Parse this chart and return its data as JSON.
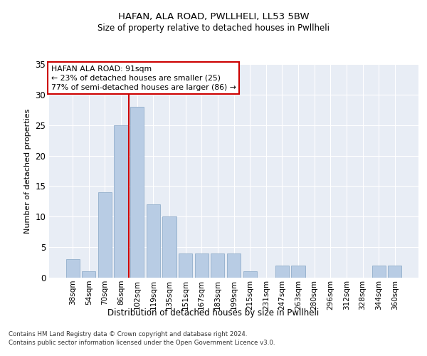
{
  "title1": "HAFAN, ALA ROAD, PWLLHELI, LL53 5BW",
  "title2": "Size of property relative to detached houses in Pwllheli",
  "xlabel": "Distribution of detached houses by size in Pwllheli",
  "ylabel": "Number of detached properties",
  "categories": [
    "38sqm",
    "54sqm",
    "70sqm",
    "86sqm",
    "102sqm",
    "119sqm",
    "135sqm",
    "151sqm",
    "167sqm",
    "183sqm",
    "199sqm",
    "215sqm",
    "231sqm",
    "247sqm",
    "263sqm",
    "280sqm",
    "296sqm",
    "312sqm",
    "328sqm",
    "344sqm",
    "360sqm"
  ],
  "values": [
    3,
    1,
    14,
    25,
    28,
    12,
    10,
    4,
    4,
    4,
    4,
    1,
    0,
    2,
    2,
    0,
    0,
    0,
    0,
    2,
    2
  ],
  "bar_color": "#b8cce4",
  "bar_edge_color": "#9ab4d0",
  "vline_color": "#cc0000",
  "vline_x_index": 3.5,
  "annotation_title": "HAFAN ALA ROAD: 91sqm",
  "annotation_line1": "← 23% of detached houses are smaller (25)",
  "annotation_line2": "77% of semi-detached houses are larger (86) →",
  "annotation_box_color": "#ffffff",
  "annotation_box_edge": "#cc0000",
  "ylim": [
    0,
    35
  ],
  "yticks": [
    0,
    5,
    10,
    15,
    20,
    25,
    30,
    35
  ],
  "footer1": "Contains HM Land Registry data © Crown copyright and database right 2024.",
  "footer2": "Contains public sector information licensed under the Open Government Licence v3.0.",
  "plot_bg_color": "#e8edf5"
}
